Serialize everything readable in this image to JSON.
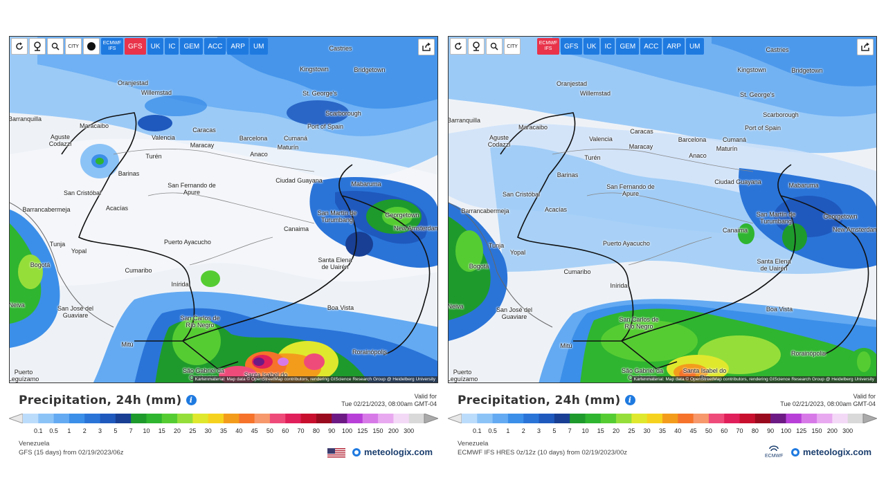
{
  "colors": {
    "accent": "#1f7ae0",
    "active_model": "#e8334a",
    "brand": "#1b3e6e"
  },
  "toolbar": {
    "icons": [
      "refresh-icon",
      "location-pin-icon",
      "zoom-icon",
      "city-toggle-icon",
      "marker-dot-icon"
    ],
    "city_label": "CITY"
  },
  "places": [
    "Castries",
    "Kingstown",
    "Bridgetown",
    "Oranjestad",
    "Willemstad",
    "St. George's",
    "Scarborough",
    "Barranquilla",
    "Maracaibo",
    "Caracas",
    "Port of Spain",
    "Valencia",
    "Barcelona",
    "Maracay",
    "Cumaná",
    "Maturín",
    "Aguste Codazzi",
    "Anaco",
    "Barinas",
    "Ciudad Guayana",
    "Turén",
    "San Fernando de Apure",
    "Mabaruma",
    "San Cristóbal",
    "Barrancabermeja",
    "Acacías",
    "San Martín de Turumbang",
    "Georgetown",
    "Canaima",
    "New Amsterdam",
    "Tunja",
    "Yopal",
    "Puerto Ayacucho",
    "Bogotá",
    "Santa Elena de Uairén",
    "Cumaribo",
    "Inírida",
    "Boa Vista",
    "Neiva",
    "San José del Guaviare",
    "San Carlos de Río Negro",
    "Mitú",
    "Rorainópolis",
    "São Gabriel da Cachoeira",
    "Santa Isabel do Rio",
    "Puerto Leguízamo"
  ],
  "attribution": "Kartenmaterial: Map data © OpenStreetMap contributors, rendering GIScience Research Group @ Heidelberg University",
  "legend": {
    "title": "Precipitation, 24h (mm)",
    "ticks": [
      "0.1",
      "0.5",
      "1",
      "2",
      "3",
      "5",
      "7",
      "10",
      "15",
      "20",
      "25",
      "30",
      "35",
      "40",
      "45",
      "50",
      "60",
      "70",
      "80",
      "90",
      "100",
      "125",
      "150",
      "200",
      "300"
    ],
    "colors": [
      "#bcdcfb",
      "#8cc3f7",
      "#64aaf2",
      "#3c8fe8",
      "#2a74d8",
      "#1f59bd",
      "#183f93",
      "#1e9a2c",
      "#2fb52f",
      "#56cc33",
      "#95de3a",
      "#e0e82d",
      "#f5d21e",
      "#f39c1c",
      "#f5732a",
      "#f6986b",
      "#ef4b7a",
      "#e0205a",
      "#c8102e",
      "#9a0a1e",
      "#6d1a85",
      "#b83fd8",
      "#d77ae8",
      "#e9a9f0",
      "#f4d9f7",
      "#d9d9d9"
    ]
  },
  "left": {
    "models": [
      "ECMWF IFS",
      "GFS",
      "UK",
      "IC",
      "GEM",
      "ACC",
      "ARP",
      "UM"
    ],
    "active": "GFS",
    "valid_label": "Valid for",
    "valid_time": "Tue 02/21/2023, 08:00am GMT-04",
    "region": "Venezuela",
    "run": "GFS (15 days) from 02/19/2023/06z",
    "brand": "meteologix.com",
    "logo": "us-flag-icon"
  },
  "right": {
    "models": [
      "ECMWF IFS",
      "GFS",
      "UK",
      "IC",
      "GEM",
      "ACC",
      "ARP",
      "UM"
    ],
    "active": "ECMWF IFS",
    "valid_label": "Valid for",
    "valid_time": "Tue 02/21/2023, 08:00am GMT-04",
    "region": "Venezuela",
    "run": "ECMWF IFS HRES 0z/12z (10 days) from 02/19/2023/00z",
    "brand": "meteologix.com",
    "logo_text": "ECMWF"
  }
}
